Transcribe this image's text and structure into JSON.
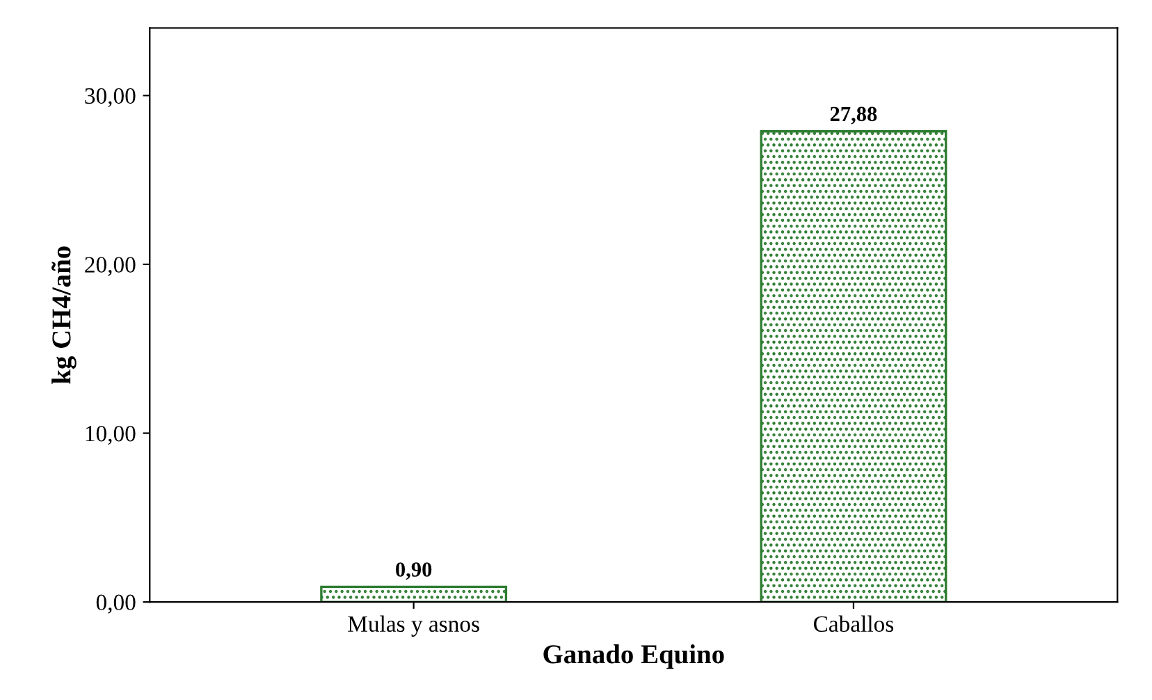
{
  "chart_data": {
    "type": "bar",
    "xlabel": "Ganado Equino",
    "ylabel": "kg CH4/año",
    "categories": [
      "Mulas y asnos",
      "Caballos"
    ],
    "values": [
      0.9,
      27.88
    ],
    "value_labels": [
      "0,90",
      "27,88"
    ],
    "color": "#2e7d32",
    "ylim": [
      0,
      34
    ],
    "yticks": [
      {
        "value": 0,
        "label": "0,00"
      },
      {
        "value": 10,
        "label": "10,00"
      },
      {
        "value": 20,
        "label": "20,00"
      },
      {
        "value": 30,
        "label": "30,00"
      }
    ],
    "grid": false
  }
}
